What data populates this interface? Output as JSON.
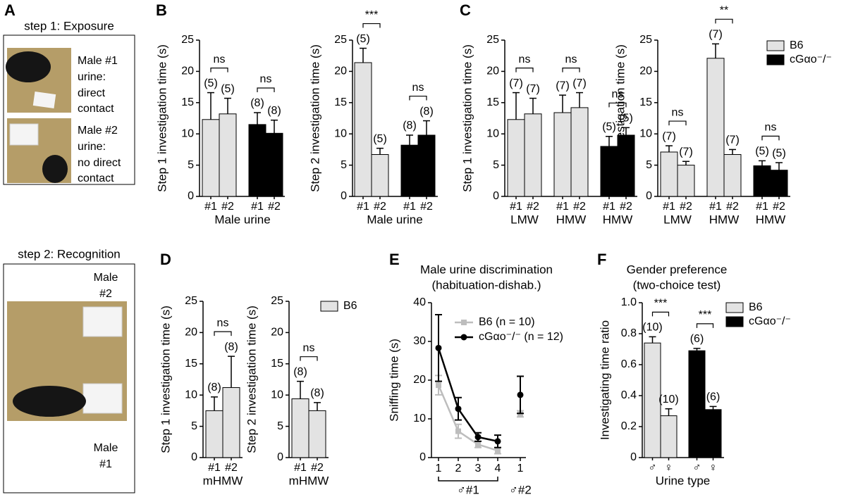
{
  "panel_letters": [
    "A",
    "B",
    "C",
    "D",
    "E",
    "F"
  ],
  "panel_a": {
    "step1_title": "step 1: Exposure",
    "photo1_label": [
      "Male #1",
      "urine:",
      "direct",
      "contact"
    ],
    "photo2_label": [
      "Male #2",
      "urine:",
      "no direct",
      "contact"
    ],
    "step2_title": "step 2: Recognition",
    "top_label": [
      "Male",
      "#2"
    ],
    "bottom_label": [
      "Male",
      "#1"
    ]
  },
  "chart_data": [
    {
      "type": "bar",
      "ylabel": "Step 1 investigation time (s)",
      "ylim": [
        0,
        25
      ],
      "yticks": [
        0,
        5,
        10,
        15,
        20,
        25
      ],
      "categories": [
        "#1",
        "#2",
        "#1",
        "#2"
      ],
      "xlabel": "Male urine",
      "series": [
        {
          "color": "#e3e3e3",
          "values": [
            12.3,
            13.2,
            null,
            null
          ],
          "errors": [
            4.3,
            2.5,
            null,
            null
          ],
          "n_labels": [
            "(5)",
            "(5)",
            null,
            null
          ]
        },
        {
          "color": "#000000",
          "values": [
            null,
            null,
            11.5,
            10.1
          ],
          "errors": [
            null,
            null,
            1.9,
            2.1
          ],
          "n_labels": [
            null,
            null,
            "(8)",
            "(8)"
          ]
        }
      ],
      "comparisons": [
        "ns",
        "ns"
      ]
    },
    {
      "type": "bar",
      "ylabel": "Step 2 investigation time (s)",
      "ylim": [
        0,
        25
      ],
      "yticks": [
        0,
        5,
        10,
        15,
        20,
        25
      ],
      "categories": [
        "#1",
        "#2",
        "#1",
        "#2"
      ],
      "xlabel": "Male urine",
      "series": [
        {
          "color": "#e3e3e3",
          "values": [
            21.4,
            6.7,
            null,
            null
          ],
          "errors": [
            2.3,
            1.0,
            null,
            null
          ],
          "n_labels": [
            "(5)",
            "(5)",
            null,
            null
          ]
        },
        {
          "color": "#000000",
          "values": [
            null,
            null,
            8.2,
            9.8
          ],
          "errors": [
            null,
            null,
            1.6,
            2.3
          ],
          "n_labels": [
            null,
            null,
            "(8)",
            "(8)"
          ]
        }
      ],
      "comparisons": [
        "***",
        "ns"
      ]
    },
    {
      "type": "bar",
      "ylabel": "Step 1 investigation time (s)",
      "ylim": [
        0,
        25
      ],
      "yticks": [
        0,
        5,
        10,
        15,
        20,
        25
      ],
      "categories": [
        "#1",
        "#2",
        "#1",
        "#2",
        "#1",
        "#2"
      ],
      "group_labels": [
        "LMW",
        "HMW",
        "HMW"
      ],
      "series": [
        {
          "color": "#e3e3e3",
          "values": [
            12.3,
            13.2,
            13.4,
            14.2,
            null,
            null
          ],
          "errors": [
            4.3,
            2.5,
            2.8,
            2.4,
            null,
            null
          ],
          "n_labels": [
            "(7)",
            "(7)",
            "(7)",
            "(7)",
            null,
            null
          ]
        },
        {
          "color": "#000000",
          "values": [
            null,
            null,
            null,
            null,
            8.0,
            9.8
          ],
          "errors": [
            null,
            null,
            null,
            null,
            1.6,
            1.2
          ],
          "n_labels": [
            null,
            null,
            null,
            null,
            "(5)",
            "(5)"
          ]
        }
      ],
      "comparisons": [
        "ns",
        "ns",
        "ns"
      ]
    },
    {
      "type": "bar",
      "ylabel": "Step 2 investigation time (s)",
      "ylim": [
        0,
        25
      ],
      "yticks": [
        0,
        5,
        10,
        15,
        20,
        25
      ],
      "categories": [
        "#1",
        "#2",
        "#1",
        "#2",
        "#1",
        "#2"
      ],
      "group_labels": [
        "LMW",
        "HMW",
        "HMW"
      ],
      "legend": "upper right",
      "series": [
        {
          "name": "B6",
          "color": "#e3e3e3",
          "values": [
            7.1,
            5.0,
            22.1,
            6.7,
            null,
            null
          ],
          "errors": [
            1.0,
            0.6,
            2.3,
            0.8,
            null,
            null
          ],
          "n_labels": [
            "(7)",
            "(7)",
            "(7)",
            "(7)",
            null,
            null
          ]
        },
        {
          "name": "cGαo⁻/⁻",
          "color": "#000000",
          "values": [
            null,
            null,
            null,
            null,
            4.9,
            4.2
          ],
          "errors": [
            null,
            null,
            null,
            null,
            0.8,
            1.2
          ],
          "n_labels": [
            null,
            null,
            null,
            null,
            "(5)",
            "(5)"
          ]
        }
      ],
      "comparisons": [
        "ns",
        "**",
        "ns"
      ]
    },
    {
      "type": "bar",
      "ylabel": "Step 1 investigation time (s)",
      "ylim": [
        0,
        25
      ],
      "yticks": [
        0,
        5,
        10,
        15,
        20,
        25
      ],
      "categories": [
        "#1",
        "#2"
      ],
      "xlabel": "mHMW",
      "series": [
        {
          "color": "#e3e3e3",
          "values": [
            7.5,
            11.2
          ],
          "errors": [
            2.2,
            5.0
          ],
          "n_labels": [
            "(8)",
            "(8)"
          ]
        }
      ],
      "comparisons": [
        "ns"
      ]
    },
    {
      "type": "bar",
      "ylabel": "Step 2 investigation time (s)",
      "ylim": [
        0,
        25
      ],
      "yticks": [
        0,
        5,
        10,
        15,
        20,
        25
      ],
      "categories": [
        "#1",
        "#2"
      ],
      "xlabel": "mHMW",
      "legend": "upper right",
      "series": [
        {
          "name": "B6",
          "color": "#e3e3e3",
          "values": [
            9.4,
            7.5
          ],
          "errors": [
            2.8,
            1.3
          ],
          "n_labels": [
            "(8)",
            "(8)"
          ]
        }
      ],
      "comparisons": [
        "ns"
      ]
    },
    {
      "type": "line",
      "title": [
        "Male urine discrimination",
        "(habituation-dishab.)"
      ],
      "ylabel": "Sniffing time (s)",
      "ylim": [
        0,
        40
      ],
      "yticks": [
        0,
        10,
        20,
        30,
        40
      ],
      "categories": [
        "1",
        "2",
        "3",
        "4",
        null,
        "1"
      ],
      "group_labels": [
        "♂#1",
        "♂#2"
      ],
      "legend": "upper right",
      "series": [
        {
          "name": "B6 (n = 10)",
          "color": "#bdbdbd",
          "marker": "square",
          "values": [
            18.7,
            6.8,
            3.4,
            1.8,
            null,
            11.3
          ],
          "errors": [
            2.5,
            1.8,
            0.8,
            0.8,
            null,
            0.8
          ]
        },
        {
          "name": "cGαo⁻/⁻ (n = 12)",
          "color": "#000000",
          "marker": "circle",
          "values": [
            28.3,
            12.6,
            5.3,
            4.2,
            null,
            16.2
          ],
          "errors": [
            8.6,
            2.9,
            1.1,
            1.6,
            null,
            4.8
          ]
        }
      ]
    },
    {
      "type": "bar",
      "title": [
        "Gender preference",
        "(two-choice test)"
      ],
      "ylabel": "Investigating time ratio",
      "ylim": [
        0,
        1
      ],
      "yticks": [
        0,
        0.2,
        0.4,
        0.6,
        0.8,
        {
          "value": 1,
          "label": "1.0"
        }
      ],
      "categories": [
        "♂",
        "♀",
        "♂",
        "♀"
      ],
      "xlabel": "Urine type",
      "legend": "upper right",
      "series": [
        {
          "name": "B6",
          "color": "#e3e3e3",
          "values": [
            0.74,
            0.27,
            null,
            null
          ],
          "errors": [
            0.04,
            0.045,
            null,
            null
          ],
          "n_labels": [
            "(10)",
            "(10)",
            null,
            null
          ]
        },
        {
          "name": "cGαo⁻/⁻",
          "color": "#000000",
          "values": [
            null,
            null,
            0.69,
            0.31
          ],
          "errors": [
            null,
            null,
            0.015,
            0.02
          ],
          "n_labels": [
            null,
            null,
            "(6)",
            "(6)"
          ]
        }
      ],
      "comparisons": [
        "***",
        "***"
      ]
    }
  ]
}
